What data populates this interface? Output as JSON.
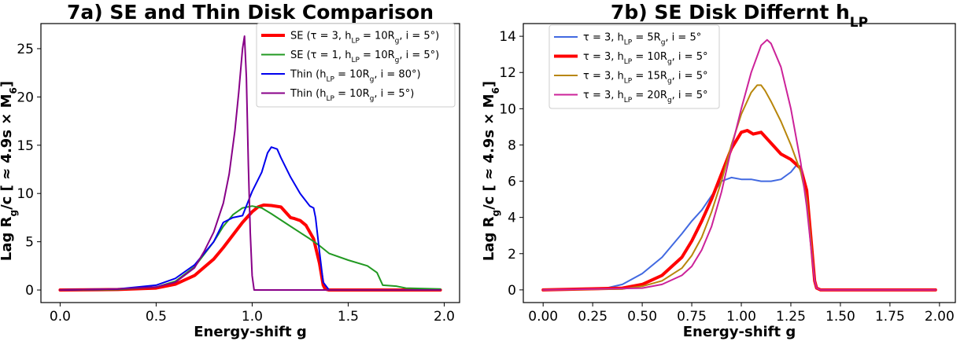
{
  "chart_data": [
    {
      "type": "line",
      "title": "7a) SE and Thin Disk Comparison",
      "xlabel": "Energy-shift g",
      "ylabel": "Lag R_g/c [ ≈ 4.9s × M_6]",
      "xlim": [
        -0.1,
        2.08
      ],
      "ylim": [
        -1.3,
        27.6
      ],
      "xticks": [
        0.0,
        0.5,
        1.0,
        1.5,
        2.0
      ],
      "xtick_labels": [
        "0.0",
        "0.5",
        "1.0",
        "1.5",
        "2.0"
      ],
      "yticks": [
        0,
        5,
        10,
        15,
        20,
        25
      ],
      "ytick_labels": [
        "0",
        "5",
        "10",
        "15",
        "20",
        "25"
      ],
      "grid": false,
      "legend_position": "top-right",
      "series": [
        {
          "name": "SE (τ = 3, h_LP = 10R_g, i = 5°)",
          "color": "#ff0000",
          "width": 4,
          "x": [
            0.0,
            0.3,
            0.5,
            0.6,
            0.7,
            0.8,
            0.85,
            0.9,
            0.95,
            1.0,
            1.03,
            1.06,
            1.1,
            1.15,
            1.2,
            1.22,
            1.25,
            1.28,
            1.32,
            1.35,
            1.37,
            1.38,
            1.4,
            1.6,
            1.8,
            1.98
          ],
          "y": [
            0.0,
            0.05,
            0.2,
            0.6,
            1.5,
            3.2,
            4.4,
            5.7,
            7.0,
            8.1,
            8.6,
            8.8,
            8.75,
            8.6,
            7.5,
            7.4,
            7.2,
            6.7,
            5.3,
            2.8,
            0.5,
            0.1,
            0.0,
            0.0,
            0.0,
            0.0
          ]
        },
        {
          "name": "SE (τ = 1, h_LP = 10R_g, i = 5°)",
          "color": "#229922",
          "width": 2,
          "x": [
            0.0,
            0.3,
            0.5,
            0.6,
            0.7,
            0.8,
            0.85,
            0.9,
            0.95,
            1.0,
            1.05,
            1.1,
            1.2,
            1.3,
            1.35,
            1.4,
            1.5,
            1.6,
            1.65,
            1.68,
            1.75,
            1.8,
            1.98
          ],
          "y": [
            0.0,
            0.05,
            0.3,
            0.9,
            2.4,
            5.0,
            6.6,
            7.8,
            8.5,
            8.7,
            8.5,
            7.9,
            6.6,
            5.3,
            4.6,
            3.8,
            3.1,
            2.5,
            1.8,
            0.5,
            0.4,
            0.2,
            0.1
          ]
        },
        {
          "name": "Thin (h_LP = 10R_g, i = 80°)",
          "color": "#0000ee",
          "width": 2,
          "x": [
            0.0,
            0.3,
            0.5,
            0.6,
            0.7,
            0.8,
            0.85,
            0.9,
            0.95,
            1.0,
            1.05,
            1.08,
            1.1,
            1.13,
            1.15,
            1.2,
            1.25,
            1.3,
            1.32,
            1.33,
            1.35,
            1.37,
            1.4,
            1.6,
            1.98
          ],
          "y": [
            0.0,
            0.1,
            0.5,
            1.2,
            2.6,
            5.0,
            7.0,
            7.5,
            7.7,
            10.2,
            12.2,
            14.2,
            14.8,
            14.6,
            13.7,
            11.7,
            10.0,
            8.7,
            8.5,
            7.5,
            4.0,
            0.8,
            0.0,
            0.0,
            0.0
          ]
        },
        {
          "name": "Thin (h_LP = 10R_g, i = 5°)",
          "color": "#880088",
          "width": 2,
          "x": [
            0.0,
            0.3,
            0.5,
            0.6,
            0.7,
            0.75,
            0.8,
            0.85,
            0.88,
            0.91,
            0.93,
            0.95,
            0.96,
            0.97,
            0.98,
            0.99,
            1.0,
            1.01,
            1.1,
            1.5,
            1.98
          ],
          "y": [
            0.0,
            0.1,
            0.3,
            0.8,
            2.3,
            4.0,
            6.0,
            9.0,
            12.0,
            16.5,
            20.5,
            25.0,
            26.3,
            22.0,
            13.0,
            6.0,
            1.5,
            0.0,
            0.0,
            0.0,
            0.0
          ]
        }
      ]
    },
    {
      "type": "line",
      "title": "7b) SE Disk Differnt h_LP",
      "xlabel": "Energy-shift g",
      "ylabel": "Lag R_g/c [ ≈ 4.9s × M_6]",
      "xlim": [
        -0.1,
        2.08
      ],
      "ylim": [
        -0.7,
        14.7
      ],
      "xticks": [
        0.0,
        0.25,
        0.5,
        0.75,
        1.0,
        1.25,
        1.5,
        1.75,
        2.0
      ],
      "xtick_labels": [
        "0.00",
        "0.25",
        "0.50",
        "0.75",
        "1.00",
        "1.25",
        "1.50",
        "1.75",
        "2.00"
      ],
      "yticks": [
        0,
        2,
        4,
        6,
        8,
        10,
        12,
        14
      ],
      "ytick_labels": [
        "0",
        "2",
        "4",
        "6",
        "8",
        "10",
        "12",
        "14"
      ],
      "grid": false,
      "legend_position": "top-left",
      "series": [
        {
          "name": "τ = 3, h_LP = 5R_g, i = 5°",
          "color": "#4169e1",
          "width": 2,
          "x": [
            0.0,
            0.3,
            0.4,
            0.5,
            0.6,
            0.7,
            0.75,
            0.8,
            0.85,
            0.9,
            0.95,
            1.0,
            1.05,
            1.1,
            1.15,
            1.2,
            1.25,
            1.28,
            1.3,
            1.33,
            1.35,
            1.37,
            1.38,
            1.4,
            1.98
          ],
          "y": [
            0.0,
            0.05,
            0.3,
            0.9,
            1.8,
            3.1,
            3.8,
            4.4,
            5.2,
            6.0,
            6.2,
            6.1,
            6.1,
            6.0,
            6.0,
            6.1,
            6.5,
            6.9,
            6.8,
            5.6,
            3.0,
            0.5,
            0.1,
            0.0,
            0.0
          ]
        },
        {
          "name": "τ = 3, h_LP = 10R_g, i = 5°",
          "color": "#ff0000",
          "width": 4,
          "x": [
            0.0,
            0.4,
            0.5,
            0.6,
            0.7,
            0.75,
            0.8,
            0.85,
            0.9,
            0.95,
            1.0,
            1.03,
            1.06,
            1.1,
            1.15,
            1.2,
            1.25,
            1.28,
            1.3,
            1.33,
            1.35,
            1.37,
            1.38,
            1.4,
            1.98
          ],
          "y": [
            0.0,
            0.1,
            0.3,
            0.8,
            1.8,
            2.7,
            3.8,
            5.0,
            6.4,
            7.8,
            8.7,
            8.8,
            8.6,
            8.7,
            8.1,
            7.5,
            7.2,
            6.9,
            6.7,
            5.5,
            3.0,
            0.5,
            0.1,
            0.0,
            0.0
          ]
        },
        {
          "name": "τ = 3, h_LP = 15R_g, i = 5°",
          "color": "#b8860b",
          "width": 2,
          "x": [
            0.0,
            0.4,
            0.5,
            0.6,
            0.7,
            0.75,
            0.8,
            0.85,
            0.9,
            0.95,
            1.0,
            1.05,
            1.08,
            1.1,
            1.12,
            1.15,
            1.2,
            1.25,
            1.3,
            1.33,
            1.35,
            1.37,
            1.38,
            1.4,
            1.98
          ],
          "y": [
            0.0,
            0.05,
            0.2,
            0.5,
            1.2,
            1.9,
            2.9,
            4.3,
            6.0,
            8.0,
            9.7,
            10.9,
            11.3,
            11.3,
            11.0,
            10.4,
            9.3,
            8.0,
            6.5,
            5.0,
            2.8,
            0.5,
            0.1,
            0.0,
            0.0
          ]
        },
        {
          "name": "τ = 3, h_LP = 20R_g, i = 5°",
          "color": "#cc2299",
          "width": 2,
          "x": [
            0.0,
            0.5,
            0.6,
            0.7,
            0.75,
            0.8,
            0.85,
            0.9,
            0.95,
            1.0,
            1.05,
            1.1,
            1.13,
            1.15,
            1.2,
            1.25,
            1.3,
            1.33,
            1.35,
            1.37,
            1.38,
            1.4,
            1.98
          ],
          "y": [
            0.0,
            0.1,
            0.3,
            0.8,
            1.3,
            2.2,
            3.5,
            5.4,
            7.8,
            10.0,
            12.0,
            13.5,
            13.8,
            13.6,
            12.3,
            10.0,
            7.0,
            4.6,
            2.5,
            0.5,
            0.1,
            0.0,
            0.0
          ]
        }
      ]
    }
  ]
}
